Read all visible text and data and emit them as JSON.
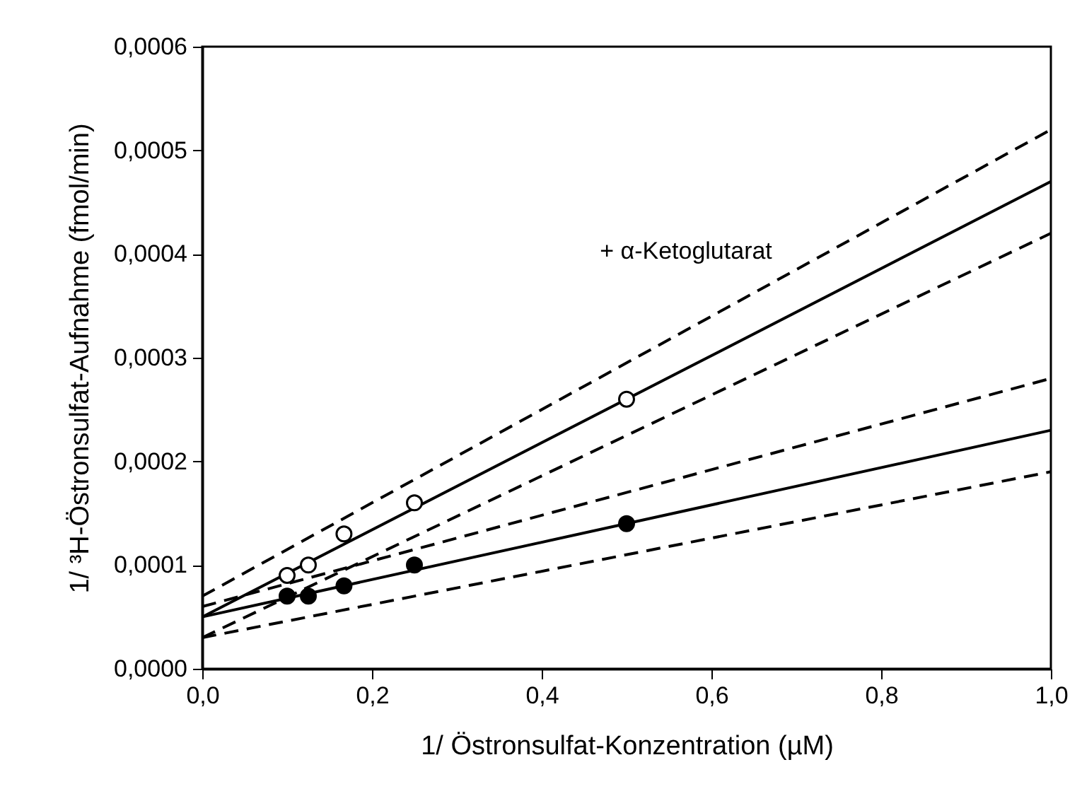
{
  "chart_data": {
    "type": "scatter",
    "xlabel": "1/ Östronsulfat-Konzentration (µM)",
    "ylabel": "1/ ³H-Östronsulfat-Aufnahme (fmol/min)",
    "xlim": [
      0,
      1
    ],
    "xticks": [
      {
        "value": 0,
        "label": "0,0"
      },
      {
        "value": 0.2,
        "label": "0,2"
      },
      {
        "value": 0.4,
        "label": "0,4"
      },
      {
        "value": 0.6,
        "label": "0,6"
      },
      {
        "value": 0.8,
        "label": "0,8"
      },
      {
        "value": 1,
        "label": "1,0"
      }
    ],
    "ylim": [
      0,
      0.0006
    ],
    "yticks": [
      {
        "value": 0,
        "label": "0,0000"
      },
      {
        "value": 0.0001,
        "label": "0,0001"
      },
      {
        "value": 0.0002,
        "label": "0,0002"
      },
      {
        "value": 0.0003,
        "label": "0,0003"
      },
      {
        "value": 0.0004,
        "label": "0,0004"
      },
      {
        "value": 0.0005,
        "label": "0,0005"
      },
      {
        "value": 0.0006,
        "label": "0,0006"
      }
    ],
    "grid": false,
    "annotations": [
      "+ α-Ketoglutarat"
    ],
    "series": [
      {
        "type": "line",
        "line_style": "dashed",
        "color": "#000000",
        "x": [
          0,
          1
        ],
        "values": [
          7e-05,
          0.00052
        ]
      },
      {
        "type": "line",
        "line_style": "solid",
        "color": "#000000",
        "x": [
          0,
          1
        ],
        "values": [
          5e-05,
          0.00047
        ]
      },
      {
        "type": "line",
        "line_style": "dashed",
        "color": "#000000",
        "x": [
          0,
          1
        ],
        "values": [
          3e-05,
          0.00042
        ]
      },
      {
        "type": "line",
        "line_style": "dashed",
        "color": "#000000",
        "x": [
          0,
          1
        ],
        "values": [
          6e-05,
          0.00028
        ]
      },
      {
        "type": "line",
        "line_style": "solid",
        "color": "#000000",
        "x": [
          0,
          1
        ],
        "values": [
          5e-05,
          0.00023
        ]
      },
      {
        "type": "line",
        "line_style": "dashed",
        "color": "#000000",
        "x": [
          0,
          1
        ],
        "values": [
          3e-05,
          0.00019
        ]
      },
      {
        "marker": "circle",
        "color": "#ffffff",
        "x": [
          0.1,
          0.125,
          0.167,
          0.25,
          0.5
        ],
        "values": [
          9e-05,
          0.0001,
          0.00013,
          0.00016,
          0.00026
        ]
      },
      {
        "marker": "circle",
        "color": "#000000",
        "x": [
          0.1,
          0.125,
          0.167,
          0.25,
          0.5
        ],
        "values": [
          7e-05,
          7e-05,
          8e-05,
          0.0001,
          0.00014
        ]
      }
    ]
  }
}
